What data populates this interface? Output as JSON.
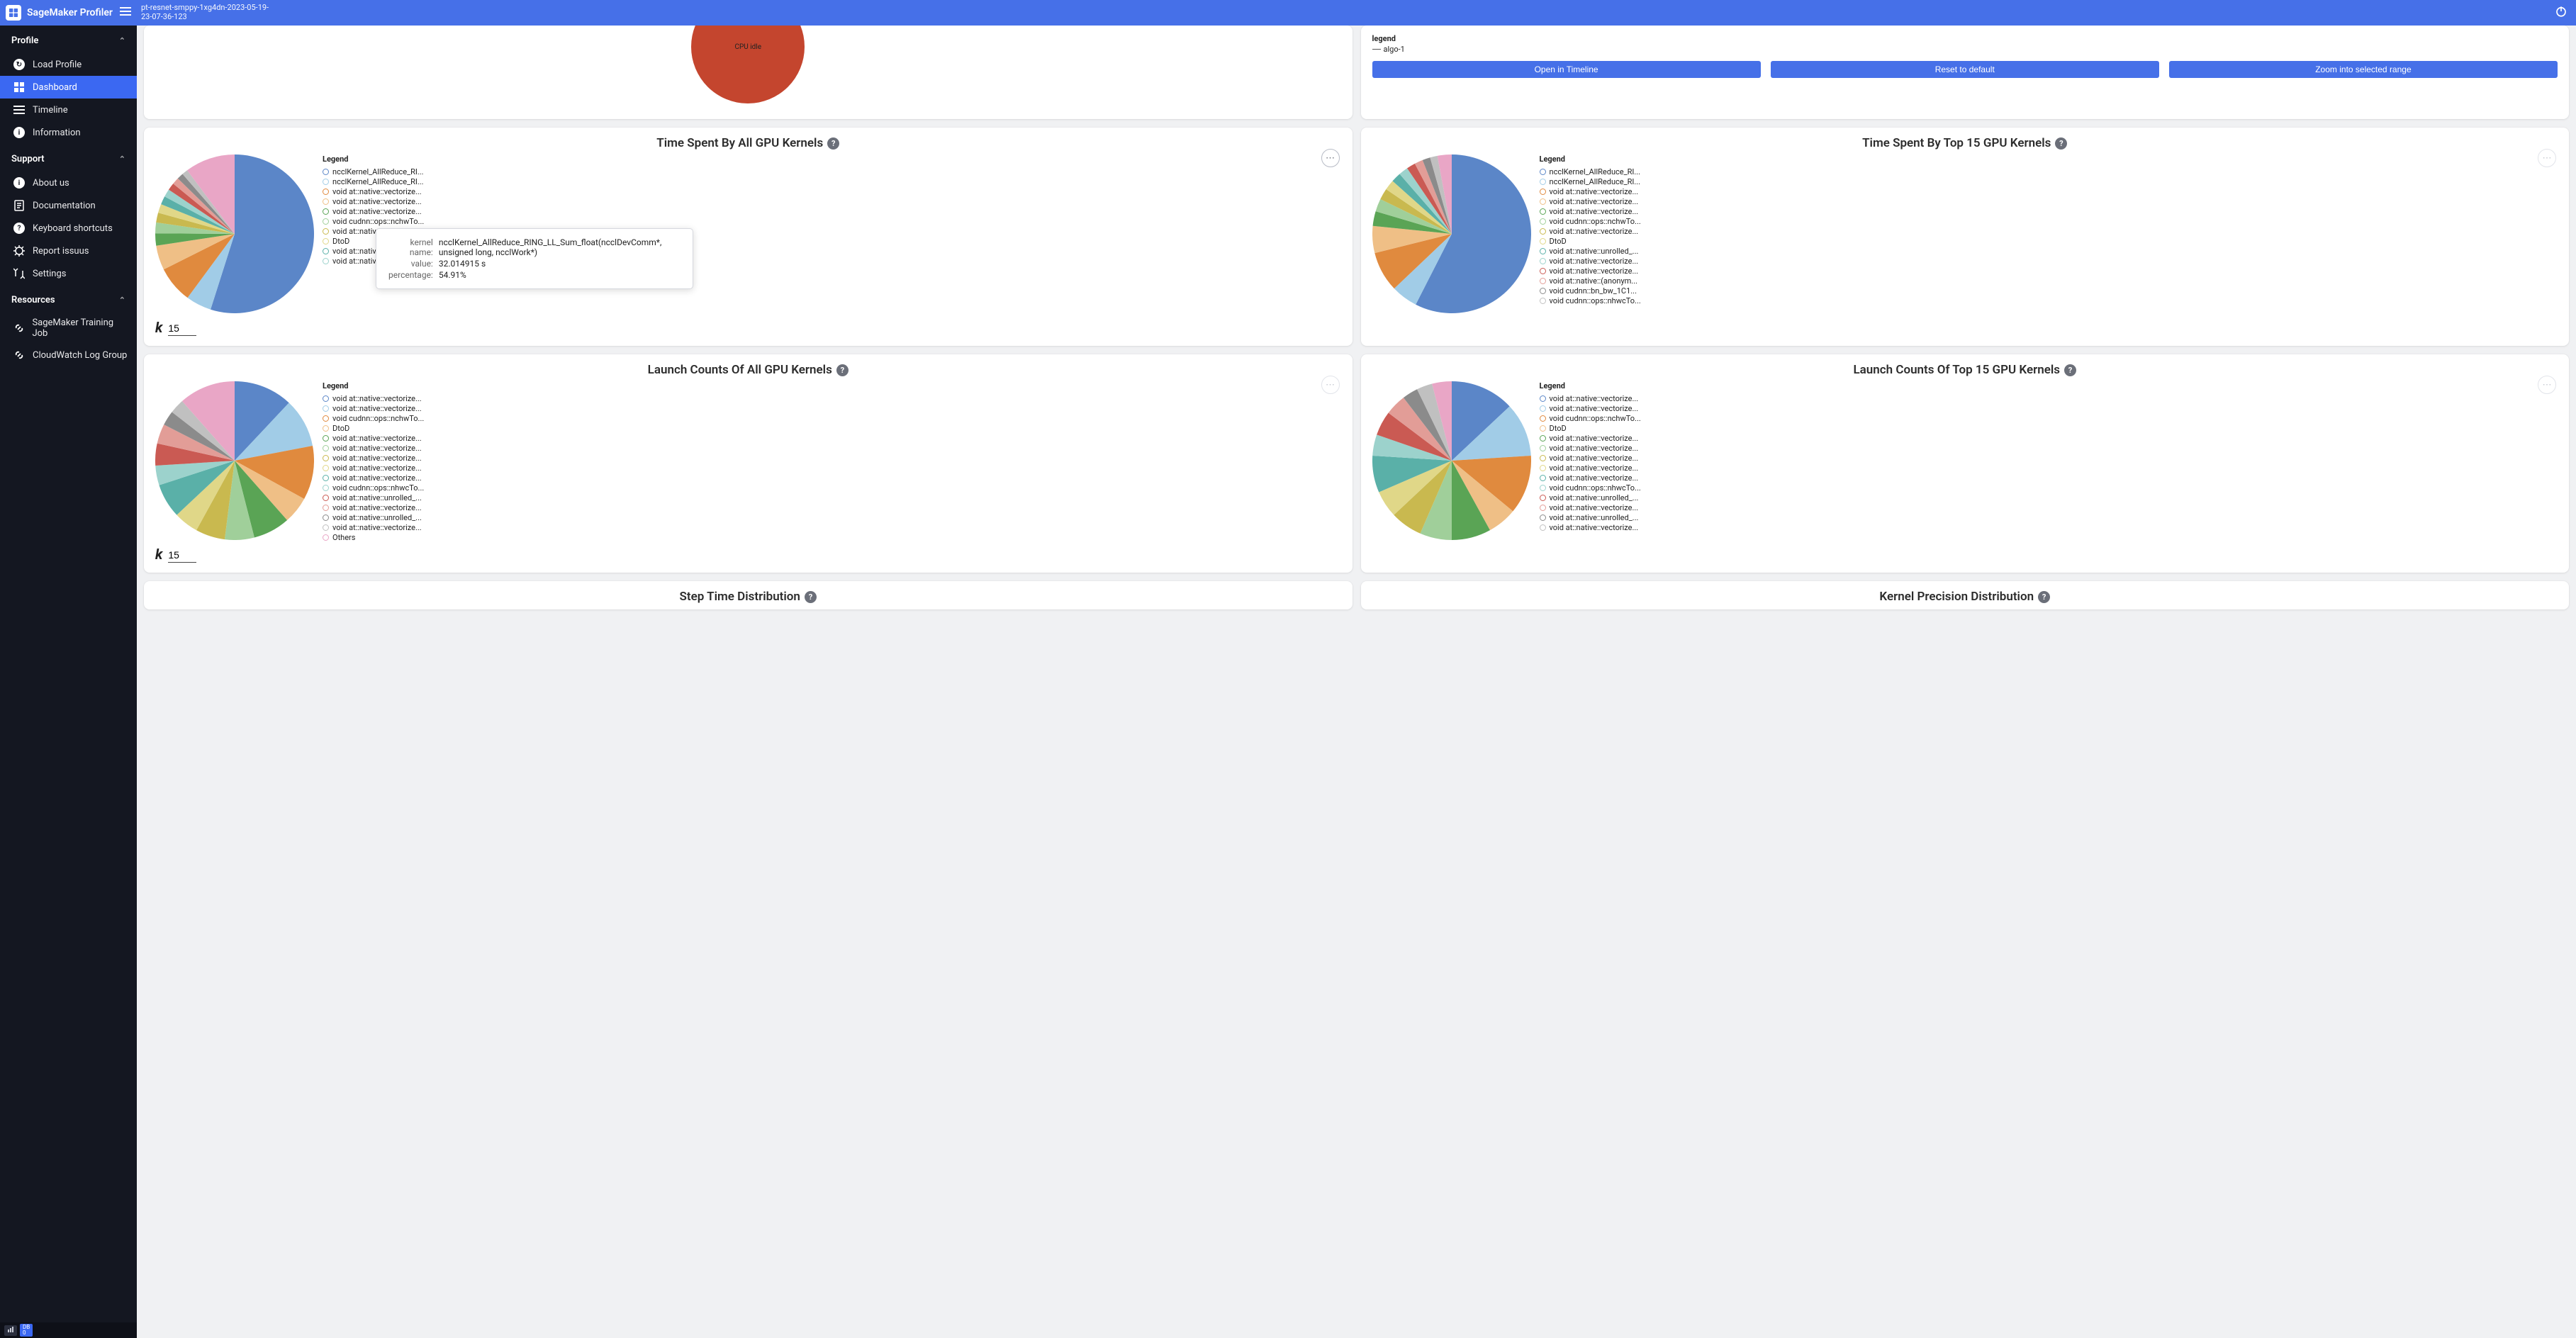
{
  "topbar": {
    "app_title": "SageMaker Profiler",
    "job_name_line1": "pt-resnet-smppy-1xg4dn-2023-05-19-",
    "job_name_line2": "23-07-36-123"
  },
  "sidebar": {
    "sections": {
      "profile": {
        "title": "Profile"
      },
      "support": {
        "title": "Support"
      },
      "resources": {
        "title": "Resources"
      }
    },
    "profile_items": [
      {
        "label": "Load Profile",
        "icon": "load"
      },
      {
        "label": "Dashboard",
        "icon": "dashboard",
        "active": true
      },
      {
        "label": "Timeline",
        "icon": "timeline"
      },
      {
        "label": "Information",
        "icon": "info"
      }
    ],
    "support_items": [
      {
        "label": "About us",
        "icon": "info"
      },
      {
        "label": "Documentation",
        "icon": "doc"
      },
      {
        "label": "Keyboard shortcuts",
        "icon": "help"
      },
      {
        "label": "Report issuus",
        "icon": "bug"
      },
      {
        "label": "Settings",
        "icon": "settings"
      }
    ],
    "resource_items": [
      {
        "label": "SageMaker Training Job",
        "icon": "link"
      },
      {
        "label": "CloudWatch Log Group",
        "icon": "link"
      }
    ],
    "footer": {
      "badge1": "▮",
      "badge2": "DB\n0"
    }
  },
  "top_row": {
    "cpu_card": {
      "label": "CPU idle",
      "color": "#c4452e"
    },
    "ts_card": {
      "legend_title": "legend",
      "legend_item": "algo-1",
      "buttons": [
        "Open in Timeline",
        "Reset to default",
        "Zoom into selected range"
      ]
    }
  },
  "charts": {
    "time_all": {
      "title": "Time Spent By All GPU Kernels",
      "k_value": "15",
      "pie_radius": 112,
      "legend_title": "Legend",
      "slices": [
        {
          "label": "ncclKernel_AllReduce_RI...",
          "color": "#5b86c8",
          "value": 54.91
        },
        {
          "label": "ncclKernel_AllReduce_RI...",
          "color": "#a1cce7",
          "value": 5.2
        },
        {
          "label": "void at::native::vectorize...",
          "color": "#e08a3e",
          "value": 7.5
        },
        {
          "label": "void at::native::vectorize...",
          "color": "#efbf86",
          "value": 5.0
        },
        {
          "label": "void at::native::vectorize...",
          "color": "#5aa455",
          "value": 2.5
        },
        {
          "label": "void cudnn::ops::nchwTo...",
          "color": "#a0cf9a",
          "value": 2.2
        },
        {
          "label": "void at::native::vectorize...",
          "color": "#c9b94f",
          "value": 2.0
        },
        {
          "label": "DtoD",
          "color": "#e0d788",
          "value": 1.8
        },
        {
          "label": "void at::native::unrolled_...",
          "color": "#5ab0a8",
          "value": 1.7
        },
        {
          "label": "void at::native::vectorize...",
          "color": "#9cd2cc",
          "value": 1.6
        },
        {
          "label": "",
          "color": "#ca5a53",
          "value": 1.5
        },
        {
          "label": "",
          "color": "#e29d97",
          "value": 1.4
        },
        {
          "label": "",
          "color": "#8b8b8b",
          "value": 1.3
        },
        {
          "label": "",
          "color": "#c0c0c0",
          "value": 1.2
        },
        {
          "label": "",
          "color": "#e9a6c6",
          "value": 10.2
        }
      ]
    },
    "time_top15": {
      "title": "Time Spent By Top 15 GPU Kernels",
      "pie_radius": 112,
      "legend_title": "Legend",
      "slices": [
        {
          "label": "ncclKernel_AllReduce_RI...",
          "color": "#5b86c8",
          "value": 57.5
        },
        {
          "label": "ncclKernel_AllReduce_RI...",
          "color": "#a1cce7",
          "value": 5.4
        },
        {
          "label": "void at::native::vectorize...",
          "color": "#e08a3e",
          "value": 8.2
        },
        {
          "label": "void at::native::vectorize...",
          "color": "#efbf86",
          "value": 5.5
        },
        {
          "label": "void at::native::vectorize...",
          "color": "#5aa455",
          "value": 3.0
        },
        {
          "label": "void cudnn::ops::nchwTo...",
          "color": "#a0cf9a",
          "value": 2.6
        },
        {
          "label": "void at::native::vectorize...",
          "color": "#c9b94f",
          "value": 2.3
        },
        {
          "label": "DtoD",
          "color": "#e0d788",
          "value": 2.1
        },
        {
          "label": "void at::native::unrolled_...",
          "color": "#5ab0a8",
          "value": 2.0
        },
        {
          "label": "void at::native::vectorize...",
          "color": "#9cd2cc",
          "value": 1.9
        },
        {
          "label": "void at::native::vectorize...",
          "color": "#ca5a53",
          "value": 1.8
        },
        {
          "label": "void at::native::(anonym...",
          "color": "#e29d97",
          "value": 1.7
        },
        {
          "label": "void cudnn::bn_bw_1C1...",
          "color": "#8b8b8b",
          "value": 1.6
        },
        {
          "label": "void cudnn::ops::nhwcTo...",
          "color": "#c0c0c0",
          "value": 1.5
        },
        {
          "label": "",
          "color": "#e9a6c6",
          "value": 2.9
        }
      ]
    },
    "launch_all": {
      "title": "Launch Counts Of All GPU Kernels",
      "k_value": "15",
      "pie_radius": 112,
      "legend_title": "Legend",
      "slices": [
        {
          "label": "void at::native::vectorize...",
          "color": "#5b86c8",
          "value": 12.0
        },
        {
          "label": "void at::native::vectorize...",
          "color": "#a1cce7",
          "value": 10.0
        },
        {
          "label": "void cudnn::ops::nchwTo...",
          "color": "#e08a3e",
          "value": 11.0
        },
        {
          "label": "DtoD",
          "color": "#efbf86",
          "value": 5.5
        },
        {
          "label": "void at::native::vectorize...",
          "color": "#5aa455",
          "value": 7.5
        },
        {
          "label": "void at::native::vectorize...",
          "color": "#a0cf9a",
          "value": 6.0
        },
        {
          "label": "void at::native::vectorize...",
          "color": "#c9b94f",
          "value": 6.0
        },
        {
          "label": "void at::native::vectorize...",
          "color": "#e0d788",
          "value": 5.0
        },
        {
          "label": "void at::native::vectorize...",
          "color": "#5ab0a8",
          "value": 7.0
        },
        {
          "label": "void cudnn::ops::nhwcTo...",
          "color": "#9cd2cc",
          "value": 4.0
        },
        {
          "label": "void at::native::unrolled_...",
          "color": "#ca5a53",
          "value": 4.5
        },
        {
          "label": "void at::native::vectorize...",
          "color": "#e29d97",
          "value": 4.0
        },
        {
          "label": "void at::native::unrolled_...",
          "color": "#8b8b8b",
          "value": 3.0
        },
        {
          "label": "void at::native::vectorize...",
          "color": "#c0c0c0",
          "value": 3.0
        },
        {
          "label": "Others",
          "color": "#e9a6c6",
          "value": 11.5
        }
      ]
    },
    "launch_top15": {
      "title": "Launch Counts Of Top 15 GPU Kernels",
      "pie_radius": 112,
      "legend_title": "Legend",
      "slices": [
        {
          "label": "void at::native::vectorize...",
          "color": "#5b86c8",
          "value": 13.0
        },
        {
          "label": "void at::native::vectorize...",
          "color": "#a1cce7",
          "value": 11.0
        },
        {
          "label": "void cudnn::ops::nchwTo...",
          "color": "#e08a3e",
          "value": 12.0
        },
        {
          "label": "DtoD",
          "color": "#efbf86",
          "value": 6.0
        },
        {
          "label": "void at::native::vectorize...",
          "color": "#5aa455",
          "value": 8.0
        },
        {
          "label": "void at::native::vectorize...",
          "color": "#a0cf9a",
          "value": 6.5
        },
        {
          "label": "void at::native::vectorize...",
          "color": "#c9b94f",
          "value": 6.5
        },
        {
          "label": "void at::native::vectorize...",
          "color": "#e0d788",
          "value": 5.5
        },
        {
          "label": "void at::native::vectorize...",
          "color": "#5ab0a8",
          "value": 7.5
        },
        {
          "label": "void cudnn::ops::nhwcTo...",
          "color": "#9cd2cc",
          "value": 4.3
        },
        {
          "label": "void at::native::unrolled_...",
          "color": "#ca5a53",
          "value": 5.0
        },
        {
          "label": "void at::native::vectorize...",
          "color": "#e29d97",
          "value": 4.3
        },
        {
          "label": "void at::native::unrolled_...",
          "color": "#8b8b8b",
          "value": 3.2
        },
        {
          "label": "void at::native::vectorize...",
          "color": "#c0c0c0",
          "value": 3.2
        },
        {
          "label": "",
          "color": "#e9a6c6",
          "value": 4.0
        }
      ]
    }
  },
  "bottom_row": {
    "left_title": "Step Time Distribution",
    "right_title": "Kernel Precision Distribution"
  },
  "tooltip": {
    "kernel_label": "kernel name:",
    "kernel_value": "ncclKernel_AllReduce_RING_LL_Sum_float(ncclDevComm*, unsigned long, ncclWork*)",
    "value_label": "value:",
    "value_value": "32.014915 s",
    "pct_label": "percentage:",
    "pct_value": "54.91%"
  }
}
